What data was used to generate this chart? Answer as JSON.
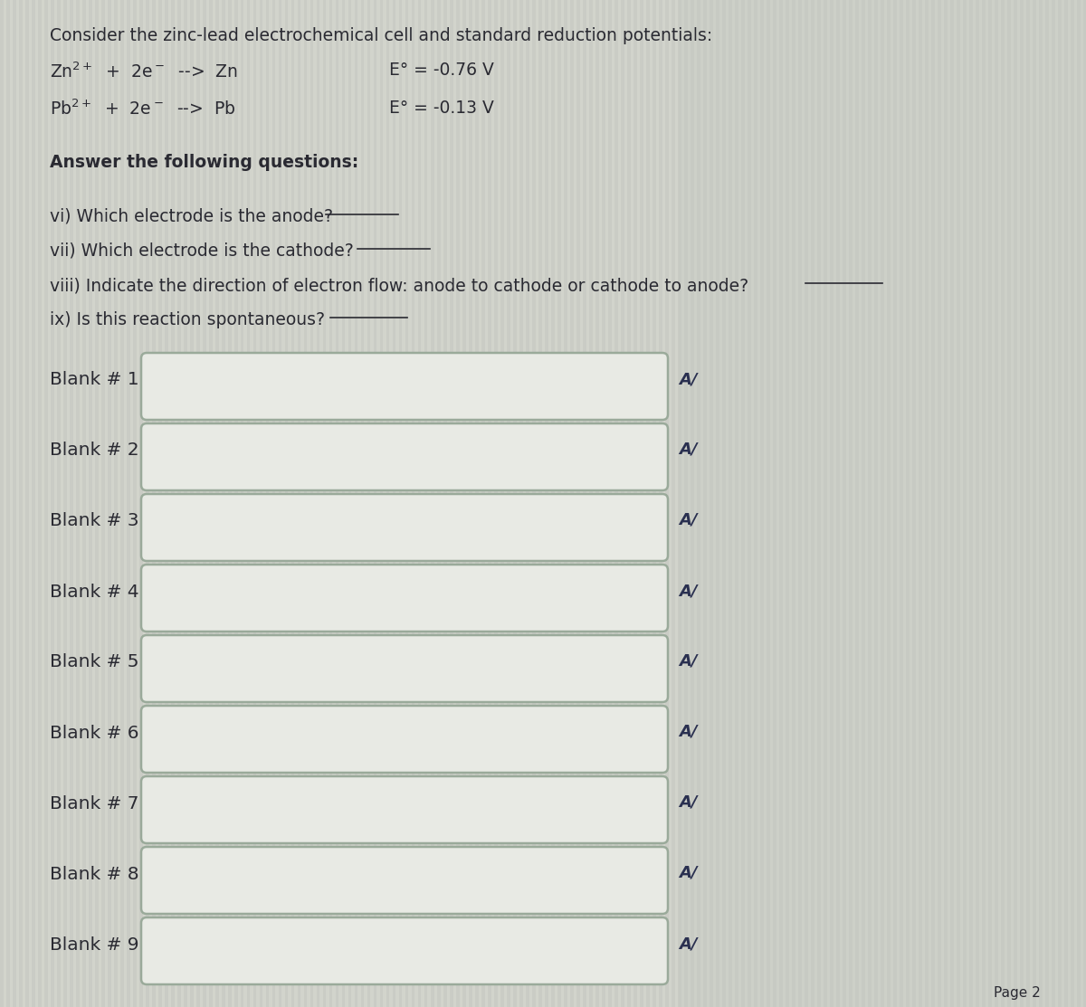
{
  "title_line": "Consider the zinc-lead electrochemical cell and standard reduction potentials:",
  "eq1_left": "Zn$^{2+}$  +  2e$^{-}$  -->  Zn",
  "eq1_right": "E° = -0.76 V",
  "eq2_left": "Pb$^{2+}$  +  2e$^{-}$  -->  Pb",
  "eq2_right": "E° = -0.13 V",
  "section_header": "Answer the following questions:",
  "q_vi": "vi) Which electrode is the anode?",
  "q_vii": "vii) Which electrode is the cathode?",
  "q_viii": "viii) Indicate the direction of electron flow: anode to cathode or cathode to anode?",
  "q_ix": "ix) Is this reaction spontaneous?",
  "blanks": [
    "Blank # 1",
    "Blank # 2",
    "Blank # 3",
    "Blank # 4",
    "Blank # 5",
    "Blank # 6",
    "Blank # 7",
    "Blank # 8",
    "Blank # 9"
  ],
  "page_label": "Page 2",
  "bg_color_left": "#d8d8d2",
  "bg_color_right": "#d4d4ce",
  "box_bg": "#e8eae4",
  "box_edge_color": "#9aaa9a",
  "text_color": "#2a2a32",
  "font_size_title": 13.5,
  "font_size_body": 13.5,
  "font_size_blank": 14.5,
  "font_size_page": 11,
  "underline_color": "#2a2a32",
  "stripe_color": "#c8c8c2",
  "stripe_alpha": 0.35
}
